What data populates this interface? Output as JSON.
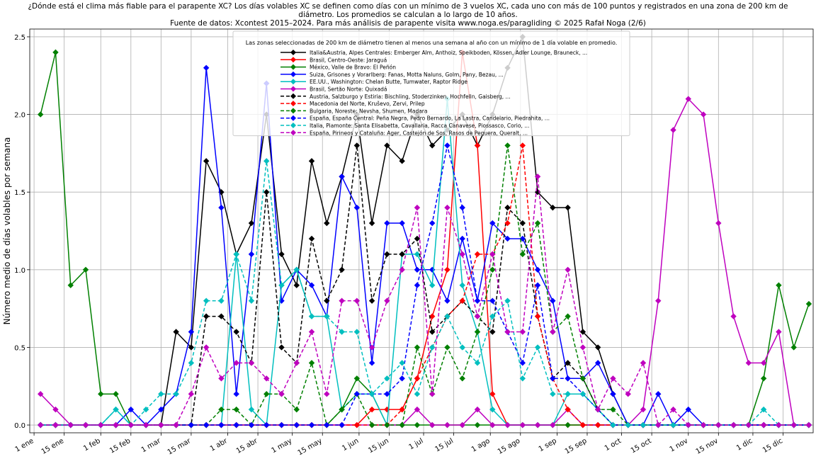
{
  "chart_data": {
    "type": "line",
    "title": "¿Dónde está el clima más fiable para el parapente XC? Los días volables XC se definen como días con un mínimo de 3 vuelos XC, cada uno con más de 100 puntos y registrados en una zona de 200 km de diámetro. Los promedios se calculan a lo largo de 10 años.",
    "subtitle": "Fuente de datos: Xcontest 2015–2024. Para más análisis de parapente visita www.noga.es/paragliding © 2025 Rafał Noga (2/6)",
    "y_label": "Número medio de días volables por semana",
    "legend_title": "Las zonas seleccionadas de 200 km de diámetro tienen al menos una semana al año con un mínimo de 1 día volable en promedio.",
    "legend": "upper center",
    "grid": true,
    "marker": "diamond",
    "xlim": [
      -2,
      362
    ],
    "ylim": [
      -0.05,
      2.55
    ],
    "xticks": [
      {
        "value": 0,
        "label": "1 ene"
      },
      {
        "value": 14,
        "label": "15 ene"
      },
      {
        "value": 31,
        "label": "1 feb"
      },
      {
        "value": 45,
        "label": "15 feb"
      },
      {
        "value": 59,
        "label": "1 mar"
      },
      {
        "value": 73,
        "label": "15 mar"
      },
      {
        "value": 90,
        "label": "1 abr"
      },
      {
        "value": 104,
        "label": "15 abr"
      },
      {
        "value": 120,
        "label": "1 may"
      },
      {
        "value": 134,
        "label": "15 may"
      },
      {
        "value": 151,
        "label": "1 jun"
      },
      {
        "value": 165,
        "label": "15 jun"
      },
      {
        "value": 181,
        "label": "1 jul"
      },
      {
        "value": 195,
        "label": "15 jul"
      },
      {
        "value": 212,
        "label": "1 ago"
      },
      {
        "value": 226,
        "label": "15 ago"
      },
      {
        "value": 243,
        "label": "1 sep"
      },
      {
        "value": 257,
        "label": "15 sep"
      },
      {
        "value": 273,
        "label": "1 oct"
      },
      {
        "value": 287,
        "label": "15 oct"
      },
      {
        "value": 304,
        "label": "1 nov"
      },
      {
        "value": 318,
        "label": "15 nov"
      },
      {
        "value": 334,
        "label": "1 dic"
      },
      {
        "value": 348,
        "label": "15 dic"
      }
    ],
    "yticks": [
      {
        "value": 0,
        "label": "0.0"
      },
      0.5,
      {
        "value": 1,
        "label": "1.0"
      },
      1.5,
      {
        "value": 2,
        "label": "2.0"
      },
      2.5
    ],
    "x": [
      3,
      10,
      17,
      24,
      31,
      38,
      45,
      52,
      59,
      66,
      73,
      80,
      87,
      94,
      101,
      108,
      115,
      122,
      129,
      136,
      143,
      150,
      157,
      164,
      171,
      178,
      185,
      192,
      199,
      206,
      213,
      220,
      227,
      234,
      241,
      248,
      255,
      262,
      269,
      276,
      283,
      290,
      297,
      304,
      311,
      318,
      325,
      332,
      339,
      346,
      353,
      360
    ],
    "series": [
      {
        "name": "Italia&Austria, Alpes Centrales: Emberger Alm, Anthoiz, Speikboden, Kössen, Adler Lounge, Brauneck, ...",
        "color": "#000000",
        "linestyle": "solid",
        "values": [
          0,
          0,
          0,
          0,
          0,
          0,
          0,
          0,
          0,
          0.6,
          0.5,
          1.7,
          1.5,
          1.1,
          1.3,
          2.0,
          1.1,
          0.9,
          1.7,
          1.3,
          1.6,
          2.0,
          1.3,
          1.8,
          1.7,
          2.0,
          1.8,
          1.9,
          2.0,
          1.8,
          2.0,
          2.3,
          2.5,
          1.5,
          1.4,
          1.4,
          0.6,
          0.5,
          0.2,
          0,
          0,
          0,
          0,
          0,
          0,
          0,
          0,
          0,
          0,
          0,
          0,
          0
        ]
      },
      {
        "name": "Brasil, Centro-Oeste: Jaraguá",
        "color": "#ff0000",
        "linestyle": "solid",
        "values": [
          0,
          0,
          0,
          0,
          0,
          0,
          0,
          0,
          0,
          0,
          0,
          0,
          0,
          0,
          0,
          0,
          0,
          0,
          0,
          0,
          0,
          0,
          0.1,
          0.1,
          0.1,
          0.3,
          0.7,
          1.0,
          2.4,
          1.8,
          0.2,
          0,
          0,
          0,
          0,
          0,
          0,
          0,
          0,
          0,
          0,
          0,
          0,
          0,
          0,
          0,
          0,
          0,
          0,
          0,
          0,
          0
        ]
      },
      {
        "name": "México, Valle de Bravo: El Peñón",
        "color": "#008000",
        "linestyle": "solid",
        "values": [
          2.0,
          2.4,
          0.9,
          1.0,
          0.2,
          0.2,
          0,
          0,
          0,
          0,
          0,
          0,
          0,
          0,
          0,
          0,
          0,
          0,
          0,
          0,
          0.1,
          0.3,
          0.2,
          0,
          0,
          0,
          0,
          0,
          0,
          0,
          0,
          0,
          0,
          0,
          0,
          0,
          0,
          0,
          0,
          0,
          0,
          0,
          0,
          0,
          0,
          0,
          0,
          0,
          0.3,
          0.9,
          0.5,
          0.78
        ]
      },
      {
        "name": "Suiza, Grisones y Vorarlberg: Fanas, Motta Naluns, Golm, Pany, Bezau, ...",
        "color": "#0000ff",
        "linestyle": "solid",
        "values": [
          0,
          0,
          0,
          0,
          0,
          0,
          0.1,
          0,
          0.1,
          0.2,
          0.6,
          2.3,
          1.4,
          0.2,
          1.1,
          2.2,
          0.8,
          1.0,
          0.9,
          0.7,
          1.6,
          1.4,
          0.4,
          1.3,
          1.3,
          1.0,
          1.0,
          0.8,
          1.2,
          0.8,
          1.3,
          1.2,
          1.2,
          1.0,
          0.8,
          0.3,
          0.3,
          0.4,
          0.2,
          0,
          0,
          0.2,
          0,
          0.1,
          0,
          0,
          0,
          0,
          0,
          0,
          0,
          0
        ]
      },
      {
        "name": "EE.UU., Washington: Chelan Butte, Tumwater, Raptor Ridge",
        "color": "#00bfbf",
        "linestyle": "solid",
        "values": [
          0,
          0,
          0,
          0,
          0,
          0.1,
          0,
          0,
          0,
          0,
          0,
          0,
          0,
          1.1,
          0.1,
          0,
          0.9,
          1.0,
          0.7,
          0.7,
          0.1,
          0.2,
          0.2,
          0,
          1.1,
          1.1,
          0.9,
          2.1,
          0.9,
          0.6,
          0.1,
          0,
          0,
          0,
          0,
          0.2,
          0.2,
          0.1,
          0,
          0,
          0,
          0,
          0,
          0,
          0,
          0,
          0,
          0,
          0,
          0,
          0,
          0
        ]
      },
      {
        "name": "Brasil, Sertão Norte: Quixadá",
        "color": "#bf00bf",
        "linestyle": "solid",
        "values": [
          0.2,
          0.1,
          0,
          0,
          0,
          0,
          0,
          0,
          0,
          0,
          0,
          0,
          0,
          0,
          0,
          0,
          0,
          0,
          0,
          0,
          0,
          0,
          0,
          0,
          0,
          0.1,
          0,
          0,
          0,
          0.1,
          0,
          0,
          0,
          0,
          0,
          0.1,
          0,
          0,
          0,
          0,
          0.1,
          0.8,
          1.9,
          2.1,
          2.0,
          1.3,
          0.7,
          0.4,
          0.4,
          0.6,
          0,
          0
        ]
      },
      {
        "name": "Austria, Salzburgo y Estiria: Bischling, Stoderzinken, Hochfelln, Gaisberg, ...",
        "color": "#000000",
        "linestyle": "dashed",
        "values": [
          0,
          0,
          0,
          0,
          0,
          0,
          0,
          0,
          0,
          0,
          0,
          0.7,
          0.7,
          0.6,
          0.4,
          1.5,
          0.5,
          0.4,
          1.2,
          0.8,
          1.0,
          1.8,
          0.8,
          1.1,
          1.1,
          1.2,
          0.6,
          0.7,
          0.8,
          0.7,
          0.6,
          1.4,
          1.3,
          0.7,
          0.3,
          0.4,
          0.3,
          0.1,
          0,
          0,
          0,
          0,
          0,
          0,
          0,
          0,
          0,
          0,
          0,
          0,
          0,
          0
        ]
      },
      {
        "name": "Macedonia del Norte, Kruševo, Zervi, Prilep",
        "color": "#ff0000",
        "linestyle": "dashed",
        "values": [
          0,
          0,
          0,
          0,
          0,
          0,
          0,
          0,
          0,
          0,
          0,
          0,
          0,
          0,
          0,
          0,
          0,
          0,
          0,
          0,
          0,
          0,
          0,
          0,
          0.1,
          0.3,
          0.5,
          0.7,
          0.8,
          1.1,
          1.1,
          1.3,
          1.8,
          0.7,
          0.3,
          0.1,
          0,
          0,
          0,
          0,
          0,
          0,
          0,
          0,
          0,
          0,
          0,
          0,
          0,
          0,
          0,
          0
        ]
      },
      {
        "name": "Bulgaria, Noreste: Nevsha, Shumen, Madara",
        "color": "#008000",
        "linestyle": "dashed",
        "values": [
          0,
          0,
          0,
          0,
          0,
          0,
          0,
          0,
          0,
          0,
          0,
          0,
          0.1,
          0.1,
          0,
          0.2,
          0.2,
          0.1,
          0.4,
          0,
          0.1,
          0.2,
          0,
          0,
          0,
          0.5,
          0.2,
          0.5,
          0.3,
          0.6,
          1.0,
          1.8,
          1.1,
          1.3,
          0.6,
          0.7,
          0.3,
          0.1,
          0.1,
          0,
          0,
          0,
          0,
          0,
          0,
          0,
          0,
          0,
          0,
          0,
          0,
          0
        ]
      },
      {
        "name": "España, España Central: Peña Negra, Pedro Bernardo, La Lastra, Candelario, Piedrahita, ...",
        "color": "#0000ff",
        "linestyle": "dashed",
        "values": [
          0,
          0,
          0,
          0,
          0,
          0,
          0,
          0,
          0,
          0,
          0,
          0,
          0,
          0,
          0,
          0,
          0,
          0,
          0,
          0,
          0,
          0.2,
          0.2,
          0.2,
          0.3,
          0.9,
          1.3,
          1.8,
          1.4,
          0.8,
          0.8,
          0.6,
          0.4,
          0.9,
          0.3,
          0.3,
          0.2,
          0.1,
          0,
          0,
          0,
          0,
          0,
          0,
          0,
          0,
          0,
          0,
          0,
          0,
          0,
          0
        ]
      },
      {
        "name": "Italia, Piamonte: Santa Elisabetta, Cavallaria, Racca Canavese, Piossasco, Corio, ...",
        "color": "#00bfbf",
        "linestyle": "dashed",
        "values": [
          0,
          0,
          0,
          0,
          0,
          0.1,
          0,
          0.1,
          0.2,
          0.2,
          0.4,
          0.8,
          0.8,
          1.1,
          0.8,
          1.7,
          0.9,
          1.0,
          0.7,
          0.7,
          0.6,
          0.6,
          0.2,
          0.3,
          0.4,
          0.2,
          0.5,
          0.7,
          0.5,
          0.4,
          0.7,
          0.8,
          0.3,
          0.5,
          0.2,
          0.2,
          0.2,
          0.1,
          0,
          0,
          0,
          0,
          0,
          0,
          0,
          0,
          0,
          0,
          0.1,
          0,
          0,
          0
        ]
      },
      {
        "name": "España, Pirineos y Cataluña: Ager, Castejón de Sos, Rasos de Peguera, Queralt, ...",
        "color": "#bf00bf",
        "linestyle": "dashed",
        "values": [
          0,
          0,
          0,
          0,
          0,
          0,
          0,
          0,
          0,
          0,
          0.2,
          0.5,
          0.3,
          0.4,
          0.4,
          0.3,
          0.2,
          0.4,
          0.6,
          0.2,
          0.8,
          0.8,
          0.5,
          0.8,
          1.0,
          1.4,
          0.2,
          1.4,
          1.1,
          0.7,
          1.1,
          0.6,
          0.6,
          1.6,
          0.6,
          1.0,
          0.5,
          0.1,
          0.3,
          0.2,
          0.4,
          0,
          0.1,
          0,
          0,
          0,
          0,
          0,
          0,
          0,
          0,
          0
        ]
      }
    ]
  }
}
